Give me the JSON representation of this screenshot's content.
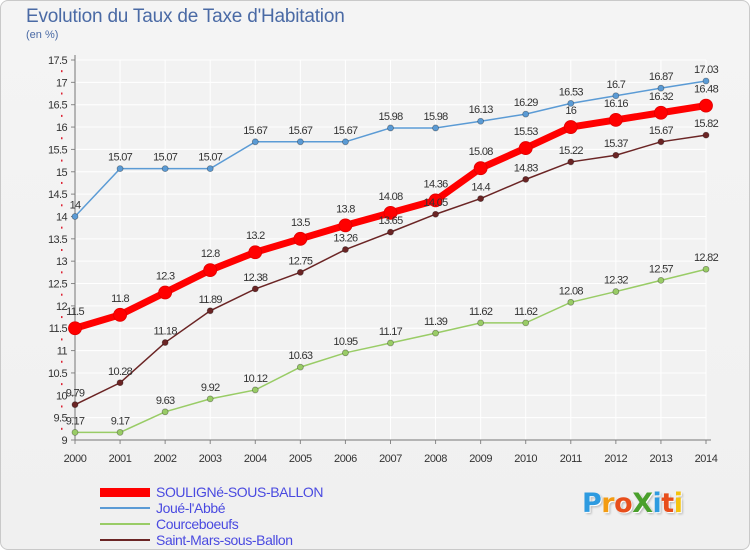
{
  "title": "Evolution du Taux de Taxe d'Habitation",
  "unit": "(en %)",
  "logo": {
    "text": "ProXiti",
    "letter_colors": [
      "#2e9be0",
      "#f39c12",
      "#e84e1b",
      "#4aa02c",
      "#2e9be0",
      "#e84e1b",
      "#f4c20d"
    ]
  },
  "chart_data": {
    "type": "line",
    "x": [
      2000,
      2001,
      2002,
      2003,
      2004,
      2005,
      2006,
      2007,
      2008,
      2009,
      2010,
      2011,
      2012,
      2013,
      2014
    ],
    "ylim": [
      9,
      17.5
    ],
    "yticks": [
      9,
      9.5,
      10,
      10.5,
      11,
      11.5,
      12,
      12.5,
      13,
      13.5,
      14,
      14.5,
      15,
      15.5,
      16,
      16.5,
      17,
      17.5
    ],
    "grid": true,
    "legend": "bottom-left",
    "series": [
      {
        "name": "SOULIGNé-SOUS-BALLON",
        "color": "#ff0000",
        "emphasis": true,
        "values": [
          11.5,
          11.8,
          12.3,
          12.8,
          13.2,
          13.5,
          13.8,
          14.08,
          14.36,
          15.08,
          15.53,
          16,
          16.16,
          16.32,
          16.48
        ],
        "labels": [
          "11.5",
          "11.8",
          "12.3",
          "12.8",
          "13.2",
          "13.5",
          "13.8",
          "14.08",
          "14.36",
          "15.08",
          "15.53",
          "16",
          "16.16",
          "16.32",
          "16.48"
        ]
      },
      {
        "name": "Joué-l'Abbé",
        "color": "#5b9bd5",
        "values": [
          14,
          15.07,
          15.07,
          15.07,
          15.67,
          15.67,
          15.67,
          15.98,
          15.98,
          16.13,
          16.29,
          16.53,
          16.7,
          16.87,
          17.03
        ],
        "labels": [
          "14",
          "15.07",
          "15.07",
          "15.07",
          "15.67",
          "15.67",
          "15.67",
          "15.98",
          "15.98",
          "16.13",
          "16.29",
          "16.53",
          "16.7",
          "16.87",
          "17.03"
        ]
      },
      {
        "name": "Courceboeufs",
        "color": "#99cc66",
        "values": [
          9.17,
          9.17,
          9.63,
          9.92,
          10.12,
          10.63,
          10.95,
          11.17,
          11.39,
          11.62,
          11.62,
          12.08,
          12.32,
          12.57,
          12.82
        ],
        "labels": [
          "9.17",
          "9.17",
          "9.63",
          "9.92",
          "10.12",
          "10.63",
          "10.95",
          "11.17",
          "11.39",
          "11.62",
          "11.62",
          "12.08",
          "12.32",
          "12.57",
          "12.82"
        ]
      },
      {
        "name": "Saint-Mars-sous-Ballon",
        "color": "#6b2525",
        "values": [
          9.79,
          10.28,
          11.18,
          11.89,
          12.38,
          12.75,
          13.26,
          13.65,
          14.05,
          14.4,
          14.83,
          15.22,
          15.37,
          15.67,
          15.82
        ],
        "labels": [
          "9.79",
          "10.28",
          "11.18",
          "11.89",
          "12.38",
          "12.75",
          "13.26",
          "13.65",
          "14.05",
          "14.4",
          "14.83",
          "15.22",
          "15.37",
          "15.67",
          "15.82"
        ]
      }
    ]
  }
}
